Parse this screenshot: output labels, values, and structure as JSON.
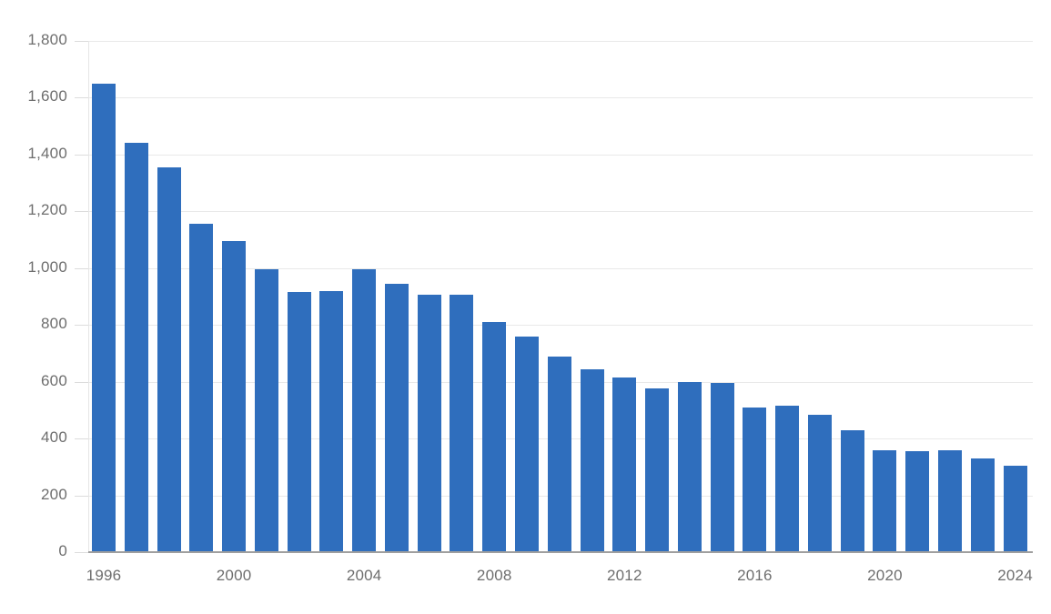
{
  "chart_data": {
    "type": "bar",
    "title": "",
    "xlabel": "",
    "ylabel": "",
    "categories": [
      1996,
      1997,
      1998,
      1999,
      2000,
      2001,
      2002,
      2003,
      2004,
      2005,
      2006,
      2007,
      2008,
      2009,
      2010,
      2011,
      2012,
      2013,
      2014,
      2015,
      2016,
      2017,
      2018,
      2019,
      2020,
      2021,
      2022,
      2023,
      2024
    ],
    "values": [
      1650,
      1440,
      1355,
      1155,
      1095,
      995,
      915,
      920,
      995,
      945,
      905,
      905,
      810,
      760,
      690,
      645,
      615,
      575,
      600,
      595,
      510,
      515,
      485,
      430,
      360,
      355,
      360,
      330,
      305
    ],
    "ylim": [
      0,
      1800
    ],
    "ytick_step": 200,
    "ytick_labels": [
      "0",
      "200",
      "400",
      "600",
      "800",
      "1,000",
      "1,200",
      "1,400",
      "1,600",
      "1,800"
    ],
    "xtick_labels": [
      "1996",
      "2000",
      "2004",
      "2008",
      "2012",
      "2016",
      "2020",
      "2024"
    ],
    "xtick_every_years": 4,
    "grid": "horizontal",
    "legend": "none",
    "bar_color": "#2f6ebd",
    "axis_label_color": "#6e6e6e",
    "gridline_color": "#e9e9e9",
    "baseline_color": "#9f9f9f",
    "background": "#ffffff"
  }
}
